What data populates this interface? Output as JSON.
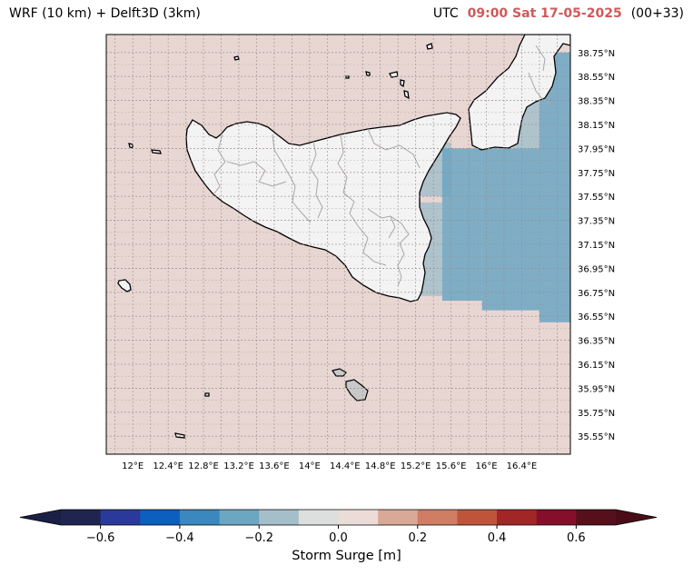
{
  "title_left": "WRF (10 km) + Delft3D (3km)",
  "title_right": {
    "prefix": "UTC",
    "time": "09:00 Sat 17-05-2025",
    "step": "(00+33)"
  },
  "map": {
    "projection": "PlateCarree",
    "region": "Sicily and Malta",
    "extent_lon": [
      11.7,
      16.95
    ],
    "extent_lat": [
      35.4,
      38.9
    ],
    "sea_color": "#e8d6d3",
    "land_color": "#f3f3f3",
    "coast_color": "#000000",
    "province_border_color": "#a8a8a8",
    "grid": true,
    "grid_style": "dashed"
  },
  "lat_ticks": [
    "38.75°N",
    "38.55°N",
    "38.35°N",
    "38.15°N",
    "37.95°N",
    "37.75°N",
    "37.55°N",
    "37.35°N",
    "37.15°N",
    "36.95°N",
    "36.75°N",
    "36.55°N",
    "36.35°N",
    "36.15°N",
    "35.95°N",
    "35.75°N",
    "35.55°N"
  ],
  "lat_values": [
    38.75,
    38.55,
    38.35,
    38.15,
    37.95,
    37.75,
    37.55,
    37.35,
    37.15,
    36.95,
    36.75,
    36.55,
    36.35,
    36.15,
    35.95,
    35.75,
    35.55
  ],
  "lon_ticks": [
    "12°E",
    "12.4°E",
    "12.8°E",
    "13.2°E",
    "13.6°E",
    "14°E",
    "14.4°E",
    "14.8°E",
    "15.2°E",
    "15.6°E",
    "16°E",
    "16.4°E"
  ],
  "lon_values": [
    12.0,
    12.4,
    12.8,
    13.2,
    13.6,
    14.0,
    14.4,
    14.8,
    15.2,
    15.6,
    16.0,
    16.4
  ],
  "surge_patches": [
    {
      "lon": [
        15.2,
        15.6
      ],
      "lat": [
        37.55,
        38.0
      ],
      "class": -0.2
    },
    {
      "lon": [
        15.5,
        15.95
      ],
      "lat": [
        36.68,
        37.95
      ],
      "class": -0.3
    },
    {
      "lon": [
        15.95,
        16.6
      ],
      "lat": [
        36.6,
        37.95
      ],
      "class": -0.3
    },
    {
      "lon": [
        16.6,
        16.95
      ],
      "lat": [
        36.5,
        38.75
      ],
      "class": -0.3
    },
    {
      "lon": [
        16.3,
        16.6
      ],
      "lat": [
        37.95,
        38.35
      ],
      "class": -0.2
    },
    {
      "lon": [
        15.15,
        15.5
      ],
      "lat": [
        36.72,
        37.5
      ],
      "class": -0.2
    }
  ],
  "colorbar": {
    "label": "Storm Surge [m]",
    "boundaries": [
      -0.7,
      -0.6,
      -0.5,
      -0.4,
      -0.3,
      -0.2,
      -0.1,
      0.0,
      0.1,
      0.2,
      0.3,
      0.4,
      0.5,
      0.6,
      0.7
    ],
    "colors": [
      "#1f2550",
      "#2a3a9a",
      "#0a5fbf",
      "#3a88bd",
      "#6ba6c2",
      "#a5bfca",
      "#dddede",
      "#ecdcd8",
      "#d9a896",
      "#cf7d63",
      "#be553b",
      "#a32627",
      "#850f2a",
      "#55101c"
    ],
    "extend_min_color": "#1a1f45",
    "extend_max_color": "#4a0d17",
    "tick_labels": [
      "−0.6",
      "−0.4",
      "−0.2",
      "0.0",
      "0.2",
      "0.4",
      "0.6"
    ],
    "tick_values": [
      -0.6,
      -0.4,
      -0.2,
      0.0,
      0.2,
      0.4,
      0.6
    ]
  }
}
